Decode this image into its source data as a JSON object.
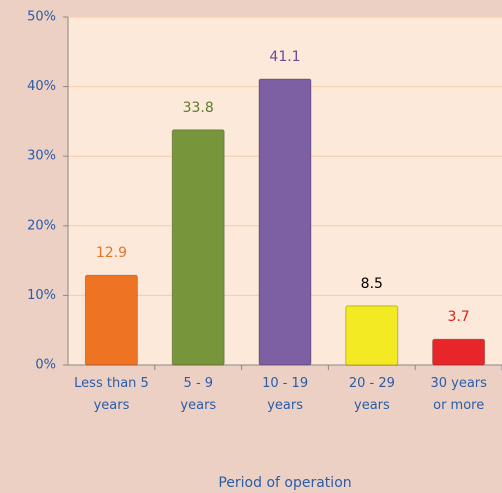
{
  "chart_data": {
    "type": "bar",
    "categories": [
      "Less than 5\nyears",
      "5 - 9\nyears",
      "10 - 19\nyears",
      "20 - 29\nyears",
      "30 years\nor more"
    ],
    "values": [
      12.9,
      33.8,
      41.1,
      8.5,
      3.7
    ],
    "colors": [
      "#ee7424",
      "#77953a",
      "#7d5fa3",
      "#f4ea24",
      "#e8262a"
    ],
    "label_colors": [
      "#e8742a",
      "#5d7a2a",
      "#6a4c93",
      "#000000",
      "#e02020"
    ],
    "x_label": "Period of operation",
    "ylim": [
      0,
      50
    ],
    "yticks": [
      {
        "value": 0,
        "label": "0%"
      },
      {
        "value": 10,
        "label": "10%"
      },
      {
        "value": 20,
        "label": "20%"
      },
      {
        "value": 30,
        "label": "30%"
      },
      {
        "value": 40,
        "label": "40%"
      },
      {
        "value": 50,
        "label": "50%"
      }
    ],
    "grid": true
  }
}
